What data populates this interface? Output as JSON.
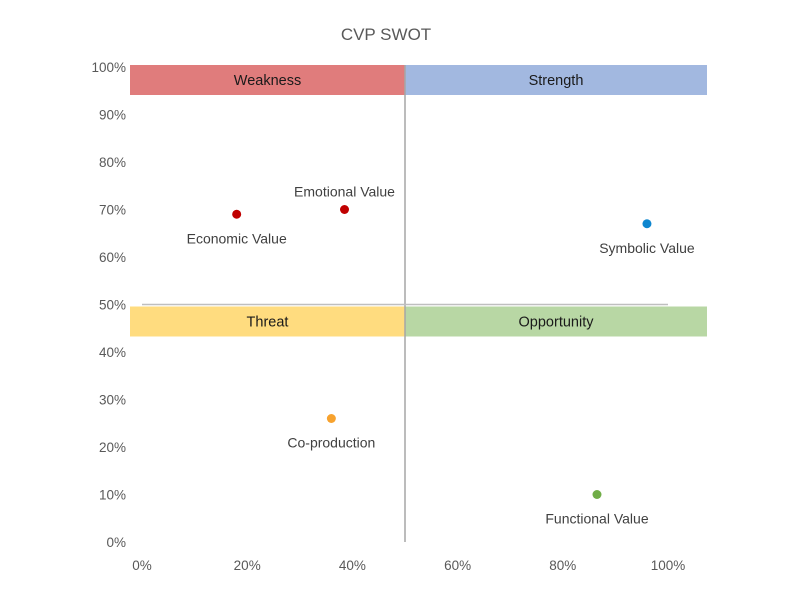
{
  "chart_data": {
    "type": "scatter",
    "title": "CVP SWOT",
    "xlabel": "",
    "ylabel": "",
    "xlim": [
      0,
      100
    ],
    "ylim": [
      0,
      100
    ],
    "grid": false,
    "legend": "none",
    "x_ticks": [
      "0%",
      "20%",
      "40%",
      "60%",
      "80%",
      "100%"
    ],
    "y_ticks": [
      "0%",
      "10%",
      "20%",
      "30%",
      "40%",
      "50%",
      "60%",
      "70%",
      "80%",
      "90%",
      "100%"
    ],
    "quadrant_divider": {
      "x": 50,
      "y": 50
    },
    "quadrants": [
      {
        "name": "Weakness",
        "position": "top-left",
        "color": "#E07C7C"
      },
      {
        "name": "Strength",
        "position": "top-right",
        "color": "#A2B8E0"
      },
      {
        "name": "Threat",
        "position": "bottom-left",
        "color": "#FFDC7F"
      },
      {
        "name": "Opportunity",
        "position": "bottom-right",
        "color": "#B8D7A4"
      }
    ],
    "points": [
      {
        "label": "Economic Value",
        "x": 18,
        "y": 69,
        "color": "#C00000",
        "label_position": "below"
      },
      {
        "label": "Emotional Value",
        "x": 38.5,
        "y": 70,
        "color": "#C00000",
        "label_position": "above"
      },
      {
        "label": "Symbolic Value",
        "x": 96,
        "y": 67,
        "color": "#0E86CF",
        "label_position": "below"
      },
      {
        "label": "Co-production",
        "x": 36,
        "y": 26,
        "color": "#F7A22E",
        "label_position": "below"
      },
      {
        "label": "Functional Value",
        "x": 86.5,
        "y": 10,
        "color": "#70AD47",
        "label_position": "below"
      }
    ]
  }
}
